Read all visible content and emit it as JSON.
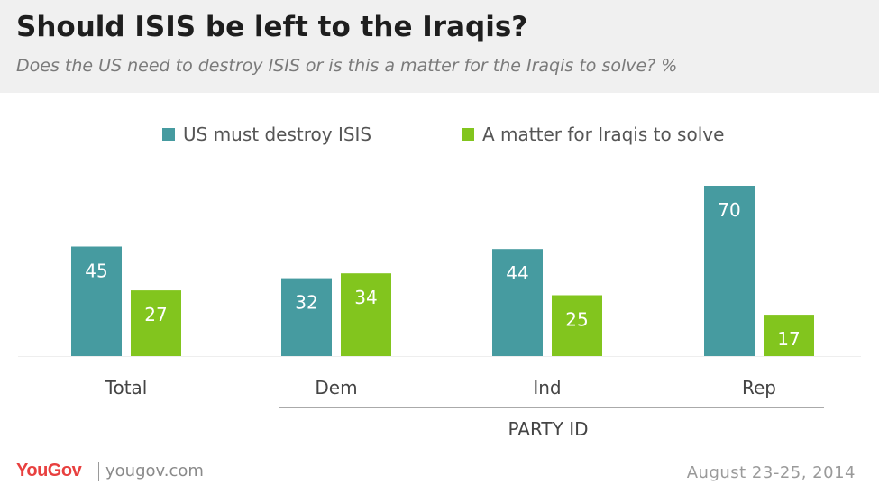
{
  "header": {
    "title": "Should ISIS be left to the Iraqis?",
    "subtitle": "Does the US need to destroy ISIS or is this a matter for the Iraqis to solve? %"
  },
  "chart_data": {
    "type": "bar",
    "categories": [
      "Total",
      "Dem",
      "Ind",
      "Rep"
    ],
    "series": [
      {
        "name": "US must destroy ISIS",
        "values": [
          45,
          32,
          44,
          70
        ],
        "color": "#469ba0"
      },
      {
        "name": "A matter for Iraqis to solve",
        "values": [
          27,
          34,
          25,
          17
        ],
        "color": "#82c51e"
      }
    ],
    "group_label": "PARTY ID",
    "ylim": [
      0,
      80
    ],
    "grid": false,
    "legend_position": "top"
  },
  "footer": {
    "brand": "YouGov",
    "url": "yougov.com",
    "date": "August 23-25, 2014"
  },
  "colors": {
    "header_bg": "#f0f0f0",
    "brand_red": "#e8403f"
  }
}
